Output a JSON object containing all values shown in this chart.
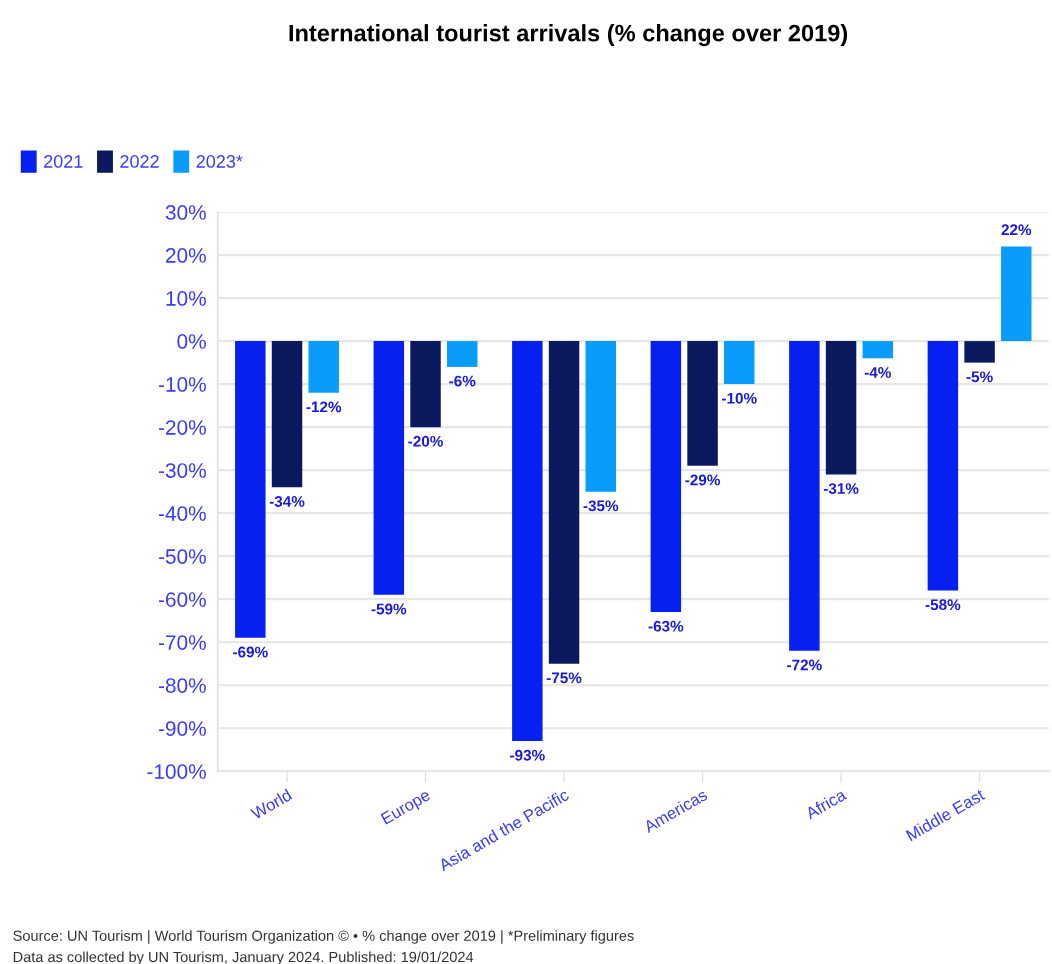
{
  "chart_data": {
    "type": "bar",
    "title": "International tourist arrivals (% change over 2019)",
    "categories": [
      "World",
      "Europe",
      "Asia and the Pacific",
      "Americas",
      "Africa",
      "Middle East"
    ],
    "series": [
      {
        "name": "2021",
        "color": "#0520f0",
        "values": [
          -69,
          -59,
          -93,
          -63,
          -72,
          -58
        ],
        "value_labels": [
          "-69%",
          "-59%",
          "-93%",
          "-63%",
          "-72%",
          "-58%"
        ]
      },
      {
        "name": "2022",
        "color": "#0b1a5e",
        "values": [
          -34,
          -20,
          -75,
          -29,
          -31,
          -5
        ],
        "value_labels": [
          "-34%",
          "-20%",
          "-75%",
          "-29%",
          "-31%",
          "-5%"
        ]
      },
      {
        "name": "2023*",
        "color": "#0a9cfa",
        "values": [
          -12,
          -6,
          -35,
          -10,
          -4,
          22
        ],
        "value_labels": [
          "-12%",
          "-6%",
          "-35%",
          "-10%",
          "-4%",
          "22%"
        ]
      }
    ],
    "ylim": [
      -100,
      30
    ],
    "yticks": [
      {
        "value": 30,
        "label": "30%"
      },
      {
        "value": 20,
        "label": "20%"
      },
      {
        "value": 10,
        "label": "10%"
      },
      {
        "value": 0,
        "label": "0%"
      },
      {
        "value": -10,
        "label": "-10%"
      },
      {
        "value": -20,
        "label": "-20%"
      },
      {
        "value": -30,
        "label": "-30%"
      },
      {
        "value": -40,
        "label": "-40%"
      },
      {
        "value": -50,
        "label": "-50%"
      },
      {
        "value": -60,
        "label": "-60%"
      },
      {
        "value": -70,
        "label": "-70%"
      },
      {
        "value": -80,
        "label": "-80%"
      },
      {
        "value": -90,
        "label": "-90%"
      },
      {
        "value": -100,
        "label": "-100%"
      }
    ],
    "grid": "y",
    "legend": "top left",
    "annotations": [
      "Source: UN Tourism | World Tourism Organization © • % change over 2019 | *Preliminary figures",
      "Data as collected by UN Tourism, January 2024. Published: 19/01/2024"
    ]
  }
}
